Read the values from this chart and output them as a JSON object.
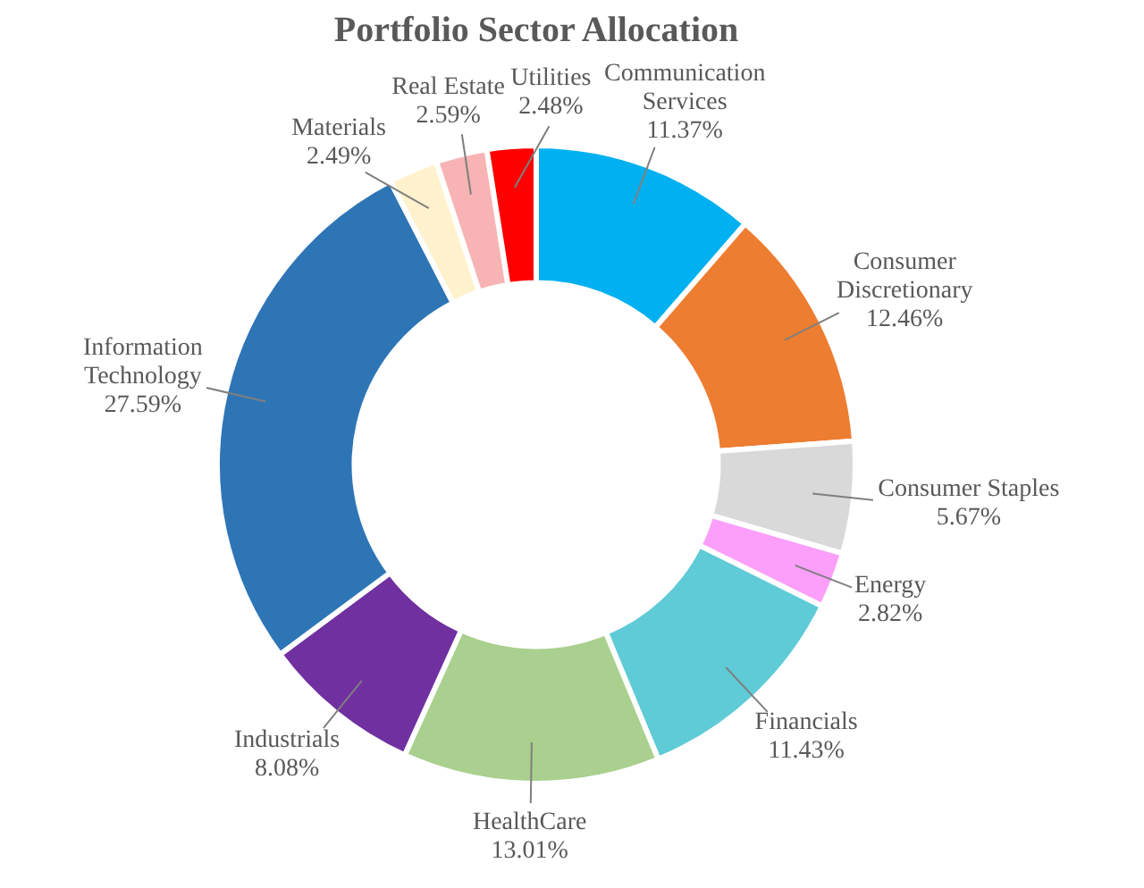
{
  "chart_data": {
    "type": "donut",
    "title": "Portfolio Sector Allocation",
    "categories": [
      "Communication Services",
      "Consumer Discretionary",
      "Consumer Staples",
      "Energy",
      "Financials",
      "HealthCare",
      "Industrials",
      "Information Technology",
      "Materials",
      "Real Estate",
      "Utilities"
    ],
    "values": [
      11.37,
      12.46,
      5.67,
      2.82,
      11.43,
      13.01,
      8.08,
      27.59,
      2.49,
      2.59,
      2.48
    ],
    "value_labels": [
      "11.37%",
      "12.46%",
      "5.67%",
      "2.82%",
      "11.43%",
      "13.01%",
      "8.08%",
      "27.59%",
      "2.49%",
      "2.59%",
      "2.48%"
    ],
    "colors": [
      "#00b0f0",
      "#ed7d31",
      "#d9d9d9",
      "#fb9ffb",
      "#5ecbd6",
      "#a9d08e",
      "#7030a0",
      "#2e75b6",
      "#fff2cc",
      "#f8b4b4",
      "#ff0000"
    ]
  }
}
